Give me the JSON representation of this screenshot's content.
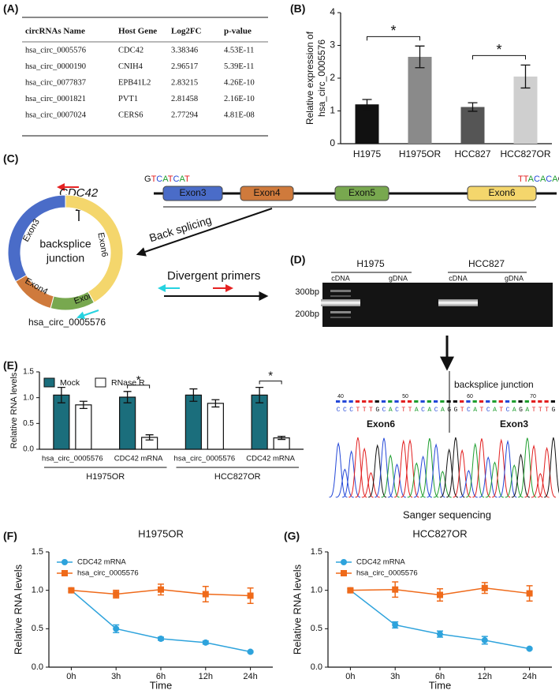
{
  "panel_labels": [
    "(A)",
    "(B)",
    "(C)",
    "(D)",
    "(E)",
    "(F)",
    "(G)"
  ],
  "table": {
    "columns": [
      "circRNAs Name",
      "Host Gene",
      "Log2FC",
      "p-value"
    ],
    "rows": [
      [
        "hsa_circ_0005576",
        "CDC42",
        "3.38346",
        "4.53E-11"
      ],
      [
        "hsa_circ_0000190",
        "CNIH4",
        "2.96517",
        "5.39E-11"
      ],
      [
        "hsa_circ_0077837",
        "EPB41L2",
        "2.83215",
        "4.26E-10"
      ],
      [
        "hsa_circ_0001821",
        "PVT1",
        "2.81458",
        "2.16E-10"
      ],
      [
        "hsa_circ_0007024",
        "CERS6",
        "2.77294",
        "4.81E-08"
      ]
    ]
  },
  "diagram": {
    "gene": "CDC42",
    "seq_left": "GTCATCAT",
    "seq_right": "TTACACAG",
    "exons": [
      "Exon3",
      "Exon4",
      "Exon5",
      "Exon6"
    ],
    "back_splicing": "Back splicing",
    "junction": [
      "backsplice",
      "junction"
    ],
    "primers": "Divergent primers",
    "circ_name": "hsa_circ_0005576"
  },
  "gel": {
    "groups": [
      "H1975",
      "HCC827"
    ],
    "lanes": [
      "cDNA",
      "gDNA",
      "cDNA",
      "gDNA"
    ],
    "markers": [
      "300bp",
      "200bp"
    ]
  },
  "sequencing": {
    "junction": "backsplice junction",
    "positions": [
      "40",
      "50",
      "60",
      "70"
    ],
    "sequence": "CCCTTTGCACTTACACAGGTCATCATCAGATTTG",
    "left_exon": "Exon6",
    "right_exon": "Exon3",
    "caption": "Sanger sequencing"
  },
  "chart_data": [
    {
      "type": "bar",
      "ylabel": [
        "Relative expression of",
        "hsa_circ_0005576"
      ],
      "categories": [
        "H1975",
        "H1975OR",
        "HCC827",
        "HCC827OR"
      ],
      "values": [
        1.2,
        2.65,
        1.12,
        2.05
      ],
      "errors": [
        0.15,
        0.33,
        0.13,
        0.35
      ],
      "colors": [
        "#111111",
        "#8a8a8a",
        "#555555",
        "#cfcfcf"
      ],
      "ylim": [
        0,
        4
      ],
      "yticks": [
        0,
        1,
        2,
        3,
        4
      ],
      "annotations": [
        "*",
        "*"
      ]
    },
    {
      "type": "grouped_bar",
      "ylabel": "Relative RNA levels",
      "categories": [
        "hsa_circ_0005576",
        "CDC42 mRNA",
        "hsa_circ_0005576",
        "CDC42 mRNA"
      ],
      "groups": [
        "H1975OR",
        "HCC827OR"
      ],
      "series": [
        {
          "name": "Mock",
          "color": "#1b6e7c",
          "values": [
            1.05,
            1.01,
            1.05,
            1.05
          ],
          "errors": [
            0.15,
            0.11,
            0.12,
            0.15
          ]
        },
        {
          "name": "RNase R",
          "color": "#ffffff",
          "values": [
            0.86,
            0.23,
            0.89,
            0.22
          ],
          "errors": [
            0.07,
            0.05,
            0.07,
            0.03
          ]
        }
      ],
      "ylim": [
        0,
        1.5
      ],
      "yticks": [
        {
          "value": 0,
          "label": "0.0"
        },
        0.5,
        {
          "value": 1,
          "label": "1.0"
        },
        {
          "value": 1.5,
          "label": "1.5"
        }
      ],
      "annotations": [
        "*",
        "*"
      ],
      "legend": "top-left"
    },
    {
      "type": "line",
      "title": "H1975OR",
      "xlabel": "Time",
      "ylabel": "Relative RNA levels",
      "categories": [
        "0h",
        "3h",
        "6h",
        "12h",
        "24h"
      ],
      "series": [
        {
          "name": "CDC42 mRNA",
          "color": "#2ea3dc",
          "marker": "circle",
          "values": [
            1.0,
            0.5,
            0.37,
            0.32,
            0.2
          ],
          "errors": [
            0.02,
            0.05,
            0.02,
            0.02,
            0.01
          ]
        },
        {
          "name": "hsa_circ_0005576",
          "color": "#ef6a1a",
          "marker": "square",
          "values": [
            1.0,
            0.95,
            1.01,
            0.95,
            0.93
          ],
          "errors": [
            0.02,
            0.05,
            0.07,
            0.1,
            0.1
          ]
        }
      ],
      "ylim": [
        0,
        1.5
      ],
      "yticks": [
        {
          "value": 0,
          "label": "0.0"
        },
        0.5,
        {
          "value": 1,
          "label": "1.0"
        },
        {
          "value": 1.5,
          "label": "1.5"
        }
      ],
      "legend": "top-left"
    },
    {
      "type": "line",
      "title": "HCC827OR",
      "xlabel": "Time",
      "ylabel": "Relative RNA levels",
      "categories": [
        "0h",
        "3h",
        "6h",
        "12h",
        "24h"
      ],
      "series": [
        {
          "name": "CDC42 mRNA",
          "color": "#2ea3dc",
          "marker": "circle",
          "values": [
            1.0,
            0.55,
            0.43,
            0.35,
            0.24
          ],
          "errors": [
            0.02,
            0.04,
            0.04,
            0.05,
            0.01
          ]
        },
        {
          "name": "hsa_circ_0005576",
          "color": "#ef6a1a",
          "marker": "square",
          "values": [
            1.0,
            1.01,
            0.94,
            1.03,
            0.96
          ],
          "errors": [
            0.02,
            0.1,
            0.08,
            0.07,
            0.1
          ]
        }
      ],
      "ylim": [
        0,
        1.5
      ],
      "yticks": [
        {
          "value": 0,
          "label": "0.0"
        },
        0.5,
        {
          "value": 1,
          "label": "1.0"
        },
        {
          "value": 1.5,
          "label": "1.5"
        }
      ],
      "legend": "top-left"
    }
  ]
}
